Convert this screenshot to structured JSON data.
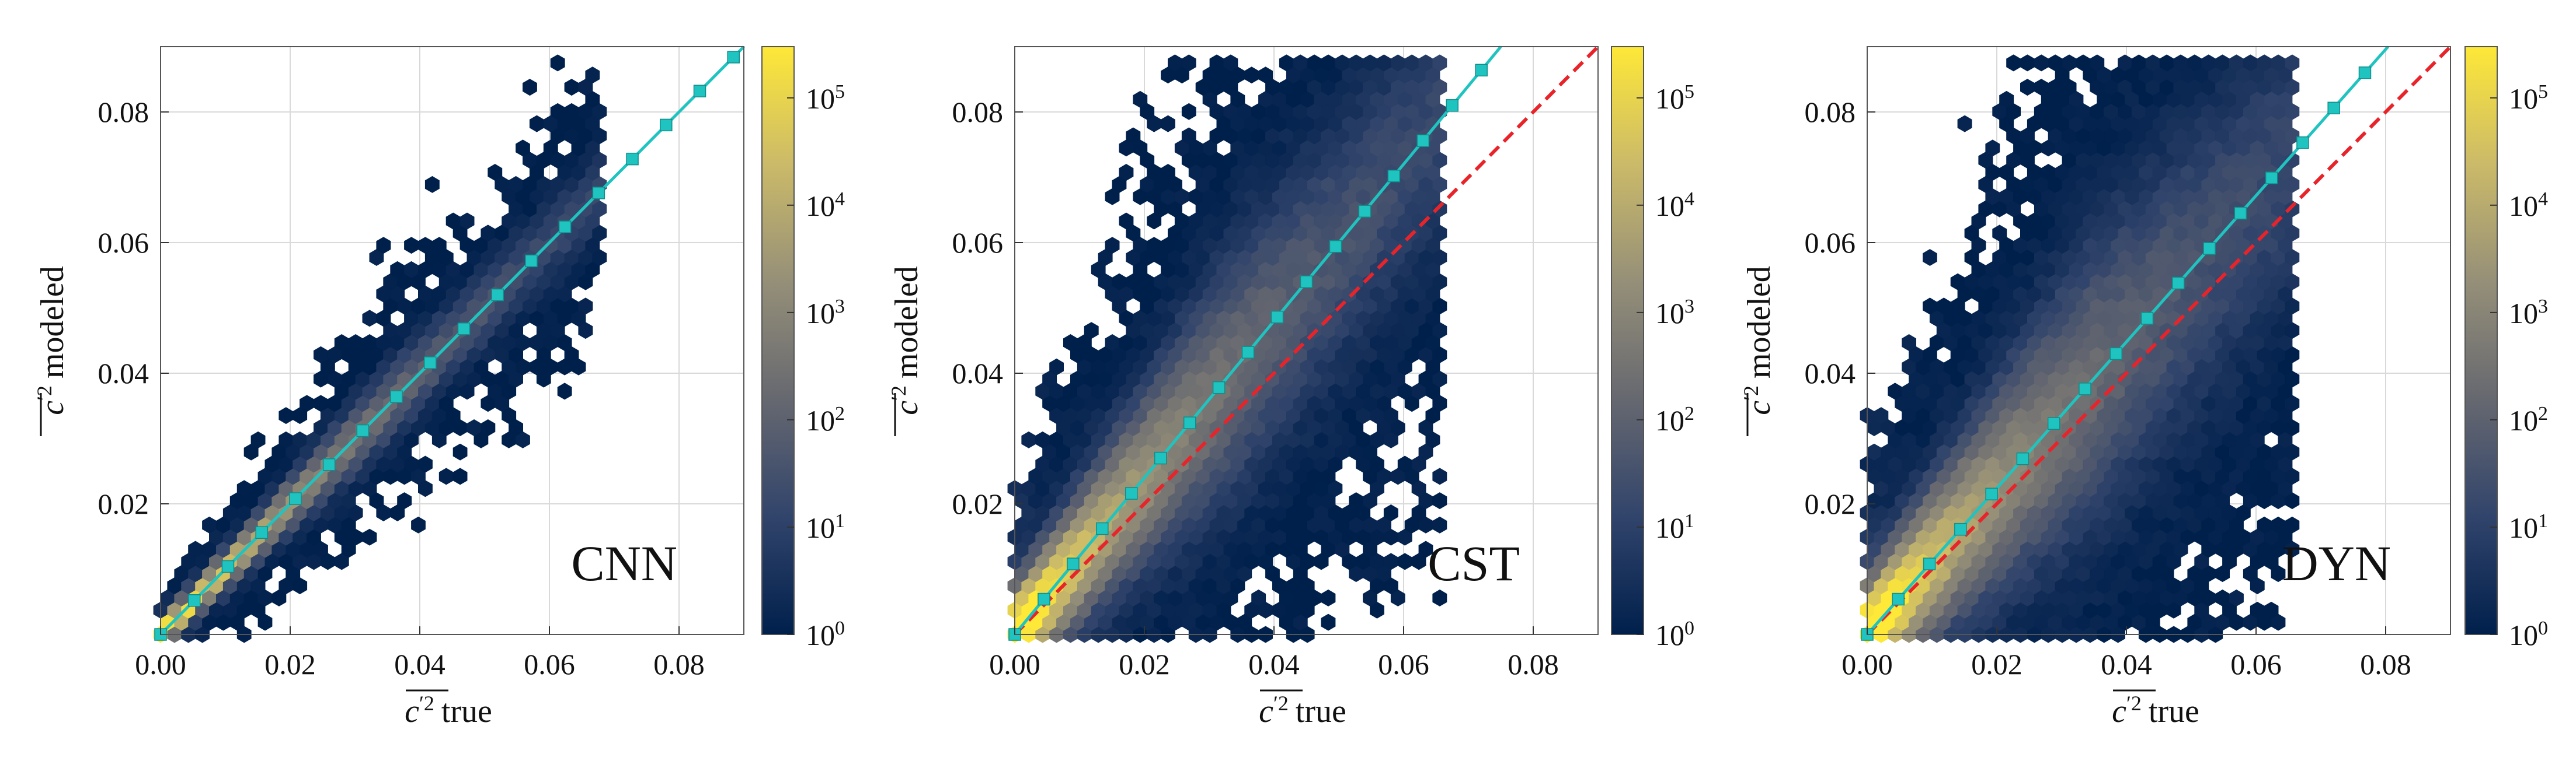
{
  "chart_data": [
    {
      "type": "hexbin",
      "panel_label": "CNN",
      "xlabel": "true",
      "ylabel": "modeled",
      "quantity_symbol": "c",
      "quantity_exponent": "′2",
      "xlim": [
        0.0,
        0.09
      ],
      "ylim": [
        0.0,
        0.09
      ],
      "xticks": [
        0.0,
        0.02,
        0.04,
        0.06,
        0.08
      ],
      "xtick_labels": [
        "0.00",
        "0.02",
        "0.04",
        "0.06",
        "0.08"
      ],
      "yticks": [
        0.02,
        0.04,
        0.06,
        0.08
      ],
      "ytick_labels": [
        "0.02",
        "0.04",
        "0.06",
        "0.08"
      ],
      "grid": true,
      "density": {
        "center_slope": 1.0,
        "spread": 0.004,
        "bottom_bias": 0.3,
        "xmax": 0.066,
        "seed": 11
      },
      "fit_line": {
        "name": "mean fit",
        "color": "#1fc4c0",
        "x": [
          0.0,
          0.0052,
          0.0104,
          0.0156,
          0.0208,
          0.026,
          0.0312,
          0.0364,
          0.0416,
          0.0468,
          0.052,
          0.0572,
          0.0624,
          0.0676,
          0.0728,
          0.078,
          0.0832,
          0.0884
        ],
        "y": [
          0.0,
          0.0052,
          0.0104,
          0.0156,
          0.0208,
          0.026,
          0.0312,
          0.0364,
          0.0416,
          0.0468,
          0.052,
          0.0572,
          0.0624,
          0.0676,
          0.0728,
          0.078,
          0.0832,
          0.0884
        ]
      },
      "identity_line": {
        "name": "y = x",
        "color": "#e8242a",
        "visible": false
      },
      "colorbar": {
        "scale": "log",
        "min": 1,
        "max": 300000,
        "tick_values": [
          1,
          10,
          100,
          1000,
          10000,
          100000
        ],
        "tick_base": "10",
        "tick_exponents": [
          "0",
          "1",
          "2",
          "3",
          "4",
          "5"
        ],
        "colormap": "cividis"
      }
    },
    {
      "type": "hexbin",
      "panel_label": "CST",
      "xlabel": "true",
      "ylabel": "modeled",
      "quantity_symbol": "c",
      "quantity_exponent": "′2",
      "xlim": [
        0.0,
        0.09
      ],
      "ylim": [
        0.0,
        0.09
      ],
      "xticks": [
        0.0,
        0.02,
        0.04,
        0.06,
        0.08
      ],
      "xtick_labels": [
        "0.00",
        "0.02",
        "0.04",
        "0.06",
        "0.08"
      ],
      "yticks": [
        0.02,
        0.04,
        0.06,
        0.08
      ],
      "ytick_labels": [
        "0.02",
        "0.04",
        "0.06",
        "0.08"
      ],
      "grid": true,
      "density": {
        "center_slope": 1.2,
        "spread": 0.013,
        "bottom_bias": 0.9,
        "xmax": 0.064,
        "seed": 23
      },
      "fit_line": {
        "name": "mean fit",
        "color": "#1fc4c0",
        "x": [
          0.0,
          0.0045,
          0.009,
          0.0135,
          0.018,
          0.0225,
          0.027,
          0.0315,
          0.036,
          0.0405,
          0.045,
          0.0495,
          0.054,
          0.0585,
          0.063,
          0.0675,
          0.072
        ],
        "y": [
          0.0,
          0.0054,
          0.0108,
          0.0162,
          0.0216,
          0.027,
          0.0324,
          0.0378,
          0.0432,
          0.0486,
          0.054,
          0.0594,
          0.0648,
          0.0702,
          0.0756,
          0.081,
          0.0864
        ]
      },
      "identity_line": {
        "name": "y = x",
        "color": "#e8242a",
        "visible": true
      },
      "colorbar": {
        "scale": "log",
        "min": 1,
        "max": 300000,
        "tick_values": [
          1,
          10,
          100,
          1000,
          10000,
          100000
        ],
        "tick_base": "10",
        "tick_exponents": [
          "0",
          "1",
          "2",
          "3",
          "4",
          "5"
        ],
        "colormap": "cividis"
      }
    },
    {
      "type": "hexbin",
      "panel_label": "DYN",
      "xlabel": "true",
      "ylabel": "modeled",
      "quantity_symbol": "c",
      "quantity_exponent": "′2",
      "xlim": [
        0.0,
        0.09
      ],
      "ylim": [
        0.0,
        0.09
      ],
      "xticks": [
        0.0,
        0.02,
        0.04,
        0.06,
        0.08
      ],
      "xtick_labels": [
        "0.00",
        "0.02",
        "0.04",
        "0.06",
        "0.08"
      ],
      "yticks": [
        0.02,
        0.04,
        0.06,
        0.08
      ],
      "ytick_labels": [
        "0.02",
        "0.04",
        "0.06",
        "0.08"
      ],
      "grid": true,
      "density": {
        "center_slope": 1.12,
        "spread": 0.015,
        "bottom_bias": 0.9,
        "xmax": 0.064,
        "seed": 37
      },
      "fit_line": {
        "name": "mean fit",
        "color": "#1fc4c0",
        "x": [
          0.0,
          0.0048,
          0.0096,
          0.0144,
          0.0192,
          0.024,
          0.0288,
          0.0336,
          0.0384,
          0.0432,
          0.048,
          0.0528,
          0.0576,
          0.0624,
          0.0672,
          0.072,
          0.0768
        ],
        "y": [
          0.0,
          0.0054,
          0.0108,
          0.0161,
          0.0215,
          0.0269,
          0.0323,
          0.0376,
          0.043,
          0.0484,
          0.0538,
          0.0591,
          0.0645,
          0.0699,
          0.0753,
          0.0806,
          0.086
        ]
      },
      "identity_line": {
        "name": "y = x",
        "color": "#e8242a",
        "visible": true
      },
      "colorbar": {
        "scale": "log",
        "min": 1,
        "max": 300000,
        "tick_values": [
          1,
          10,
          100,
          1000,
          10000,
          100000
        ],
        "tick_base": "10",
        "tick_exponents": [
          "0",
          "1",
          "2",
          "3",
          "4",
          "5"
        ],
        "colormap": "cividis"
      }
    }
  ]
}
